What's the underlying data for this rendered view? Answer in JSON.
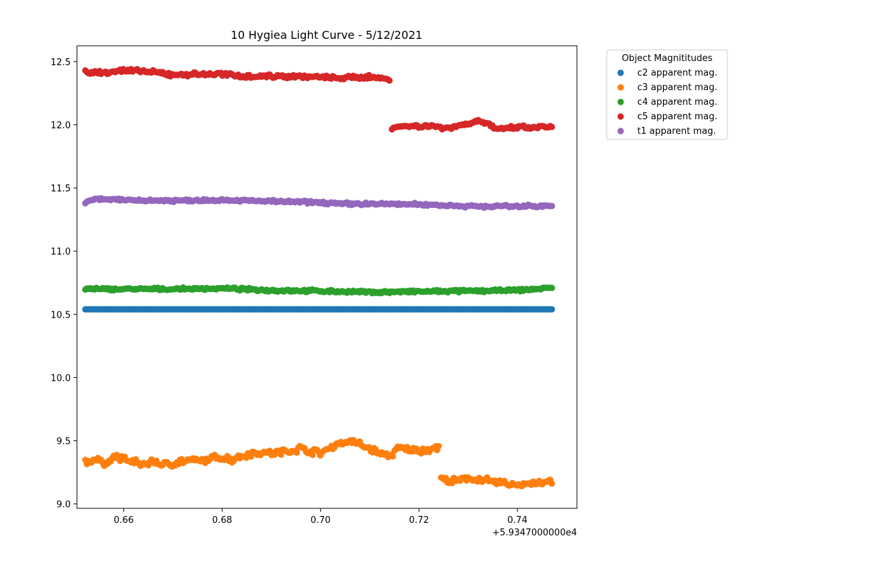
{
  "chart_data": {
    "type": "scatter",
    "title": "10 Hygiea Light Curve - 5/12/2021",
    "xlabel": "",
    "ylabel": "",
    "x_offset_label": "+5.9347000000e4",
    "xlim": [
      0.6505,
      0.7521
    ],
    "ylim": [
      8.965,
      12.625
    ],
    "xticks": [
      0.66,
      0.68,
      0.7,
      0.72,
      0.74
    ],
    "xtick_labels": [
      "0.66",
      "0.68",
      "0.70",
      "0.72",
      "0.74"
    ],
    "yticks": [
      9.0,
      9.5,
      10.0,
      10.5,
      11.0,
      11.5,
      12.0,
      12.5
    ],
    "ytick_labels": [
      "9.0",
      "9.5",
      "10.0",
      "10.5",
      "11.0",
      "11.5",
      "12.0",
      "12.5"
    ],
    "grid": false,
    "legend": {
      "title": "Object Magnititudes",
      "placement": "outside-top-right"
    },
    "series": [
      {
        "name": "c2 apparent mag.",
        "color": "#1f77b4",
        "segments": [
          {
            "x_start": 0.6522,
            "x_end": 0.747,
            "points": [
              [
                0.6522,
                10.54
              ],
              [
                0.747,
                10.54
              ]
            ]
          }
        ]
      },
      {
        "name": "c3 apparent mag.",
        "color": "#ff7f0e",
        "segments": [
          {
            "x_start": 0.6522,
            "x_end": 0.724,
            "points": [
              [
                0.6522,
                9.33
              ],
              [
                0.654,
                9.35
              ],
              [
                0.656,
                9.32
              ],
              [
                0.658,
                9.37
              ],
              [
                0.66,
                9.36
              ],
              [
                0.662,
                9.33
              ],
              [
                0.664,
                9.31
              ],
              [
                0.666,
                9.34
              ],
              [
                0.668,
                9.31
              ],
              [
                0.67,
                9.32
              ],
              [
                0.672,
                9.34
              ],
              [
                0.674,
                9.34
              ],
              [
                0.676,
                9.34
              ],
              [
                0.678,
                9.36
              ],
              [
                0.68,
                9.37
              ],
              [
                0.682,
                9.35
              ],
              [
                0.684,
                9.38
              ],
              [
                0.686,
                9.4
              ],
              [
                0.688,
                9.41
              ],
              [
                0.69,
                9.4
              ],
              [
                0.692,
                9.41
              ],
              [
                0.694,
                9.42
              ],
              [
                0.696,
                9.44
              ],
              [
                0.698,
                9.42
              ],
              [
                0.7,
                9.4
              ],
              [
                0.702,
                9.45
              ],
              [
                0.704,
                9.48
              ],
              [
                0.706,
                9.5
              ],
              [
                0.708,
                9.47
              ],
              [
                0.71,
                9.44
              ],
              [
                0.712,
                9.4
              ],
              [
                0.714,
                9.38
              ],
              [
                0.716,
                9.44
              ],
              [
                0.718,
                9.43
              ],
              [
                0.72,
                9.42
              ],
              [
                0.722,
                9.43
              ],
              [
                0.724,
                9.45
              ]
            ]
          },
          {
            "x_start": 0.7245,
            "x_end": 0.747,
            "points": [
              [
                0.7245,
                9.2
              ],
              [
                0.726,
                9.18
              ],
              [
                0.728,
                9.18
              ],
              [
                0.73,
                9.2
              ],
              [
                0.732,
                9.2
              ],
              [
                0.734,
                9.18
              ],
              [
                0.736,
                9.17
              ],
              [
                0.738,
                9.16
              ],
              [
                0.74,
                9.15
              ],
              [
                0.742,
                9.16
              ],
              [
                0.744,
                9.17
              ],
              [
                0.746,
                9.17
              ],
              [
                0.747,
                9.17
              ]
            ]
          }
        ]
      },
      {
        "name": "c4 apparent mag.",
        "color": "#2ca02c",
        "segments": [
          {
            "x_start": 0.6522,
            "x_end": 0.747,
            "points": [
              [
                0.6522,
                10.7
              ],
              [
                0.66,
                10.7
              ],
              [
                0.67,
                10.7
              ],
              [
                0.68,
                10.705
              ],
              [
                0.69,
                10.69
              ],
              [
                0.7,
                10.685
              ],
              [
                0.705,
                10.68
              ],
              [
                0.71,
                10.675
              ],
              [
                0.72,
                10.68
              ],
              [
                0.73,
                10.685
              ],
              [
                0.74,
                10.69
              ],
              [
                0.747,
                10.71
              ]
            ]
          }
        ]
      },
      {
        "name": "c5 apparent mag.",
        "color": "#d62728",
        "segments": [
          {
            "x_start": 0.6522,
            "x_end": 0.714,
            "points": [
              [
                0.6522,
                12.42
              ],
              [
                0.655,
                12.41
              ],
              [
                0.66,
                12.43
              ],
              [
                0.665,
                12.42
              ],
              [
                0.67,
                12.395
              ],
              [
                0.675,
                12.4
              ],
              [
                0.68,
                12.4
              ],
              [
                0.685,
                12.385
              ],
              [
                0.69,
                12.385
              ],
              [
                0.695,
                12.385
              ],
              [
                0.7,
                12.375
              ],
              [
                0.705,
                12.37
              ],
              [
                0.71,
                12.38
              ],
              [
                0.714,
                12.36
              ]
            ]
          },
          {
            "x_start": 0.7145,
            "x_end": 0.747,
            "points": [
              [
                0.7145,
                11.98
              ],
              [
                0.718,
                11.99
              ],
              [
                0.722,
                11.99
              ],
              [
                0.726,
                11.975
              ],
              [
                0.73,
                12.01
              ],
              [
                0.732,
                12.03
              ],
              [
                0.734,
                12.01
              ],
              [
                0.736,
                11.96
              ],
              [
                0.74,
                11.98
              ],
              [
                0.744,
                11.975
              ],
              [
                0.747,
                11.99
              ]
            ]
          }
        ]
      },
      {
        "name": "t1 apparent mag.",
        "color": "#9467bd",
        "segments": [
          {
            "x_start": 0.6522,
            "x_end": 0.747,
            "points": [
              [
                0.6522,
                11.38
              ],
              [
                0.654,
                11.41
              ],
              [
                0.66,
                11.405
              ],
              [
                0.67,
                11.4
              ],
              [
                0.68,
                11.405
              ],
              [
                0.69,
                11.395
              ],
              [
                0.7,
                11.385
              ],
              [
                0.705,
                11.375
              ],
              [
                0.71,
                11.375
              ],
              [
                0.72,
                11.37
              ],
              [
                0.73,
                11.355
              ],
              [
                0.74,
                11.355
              ],
              [
                0.747,
                11.36
              ]
            ]
          }
        ]
      }
    ]
  }
}
